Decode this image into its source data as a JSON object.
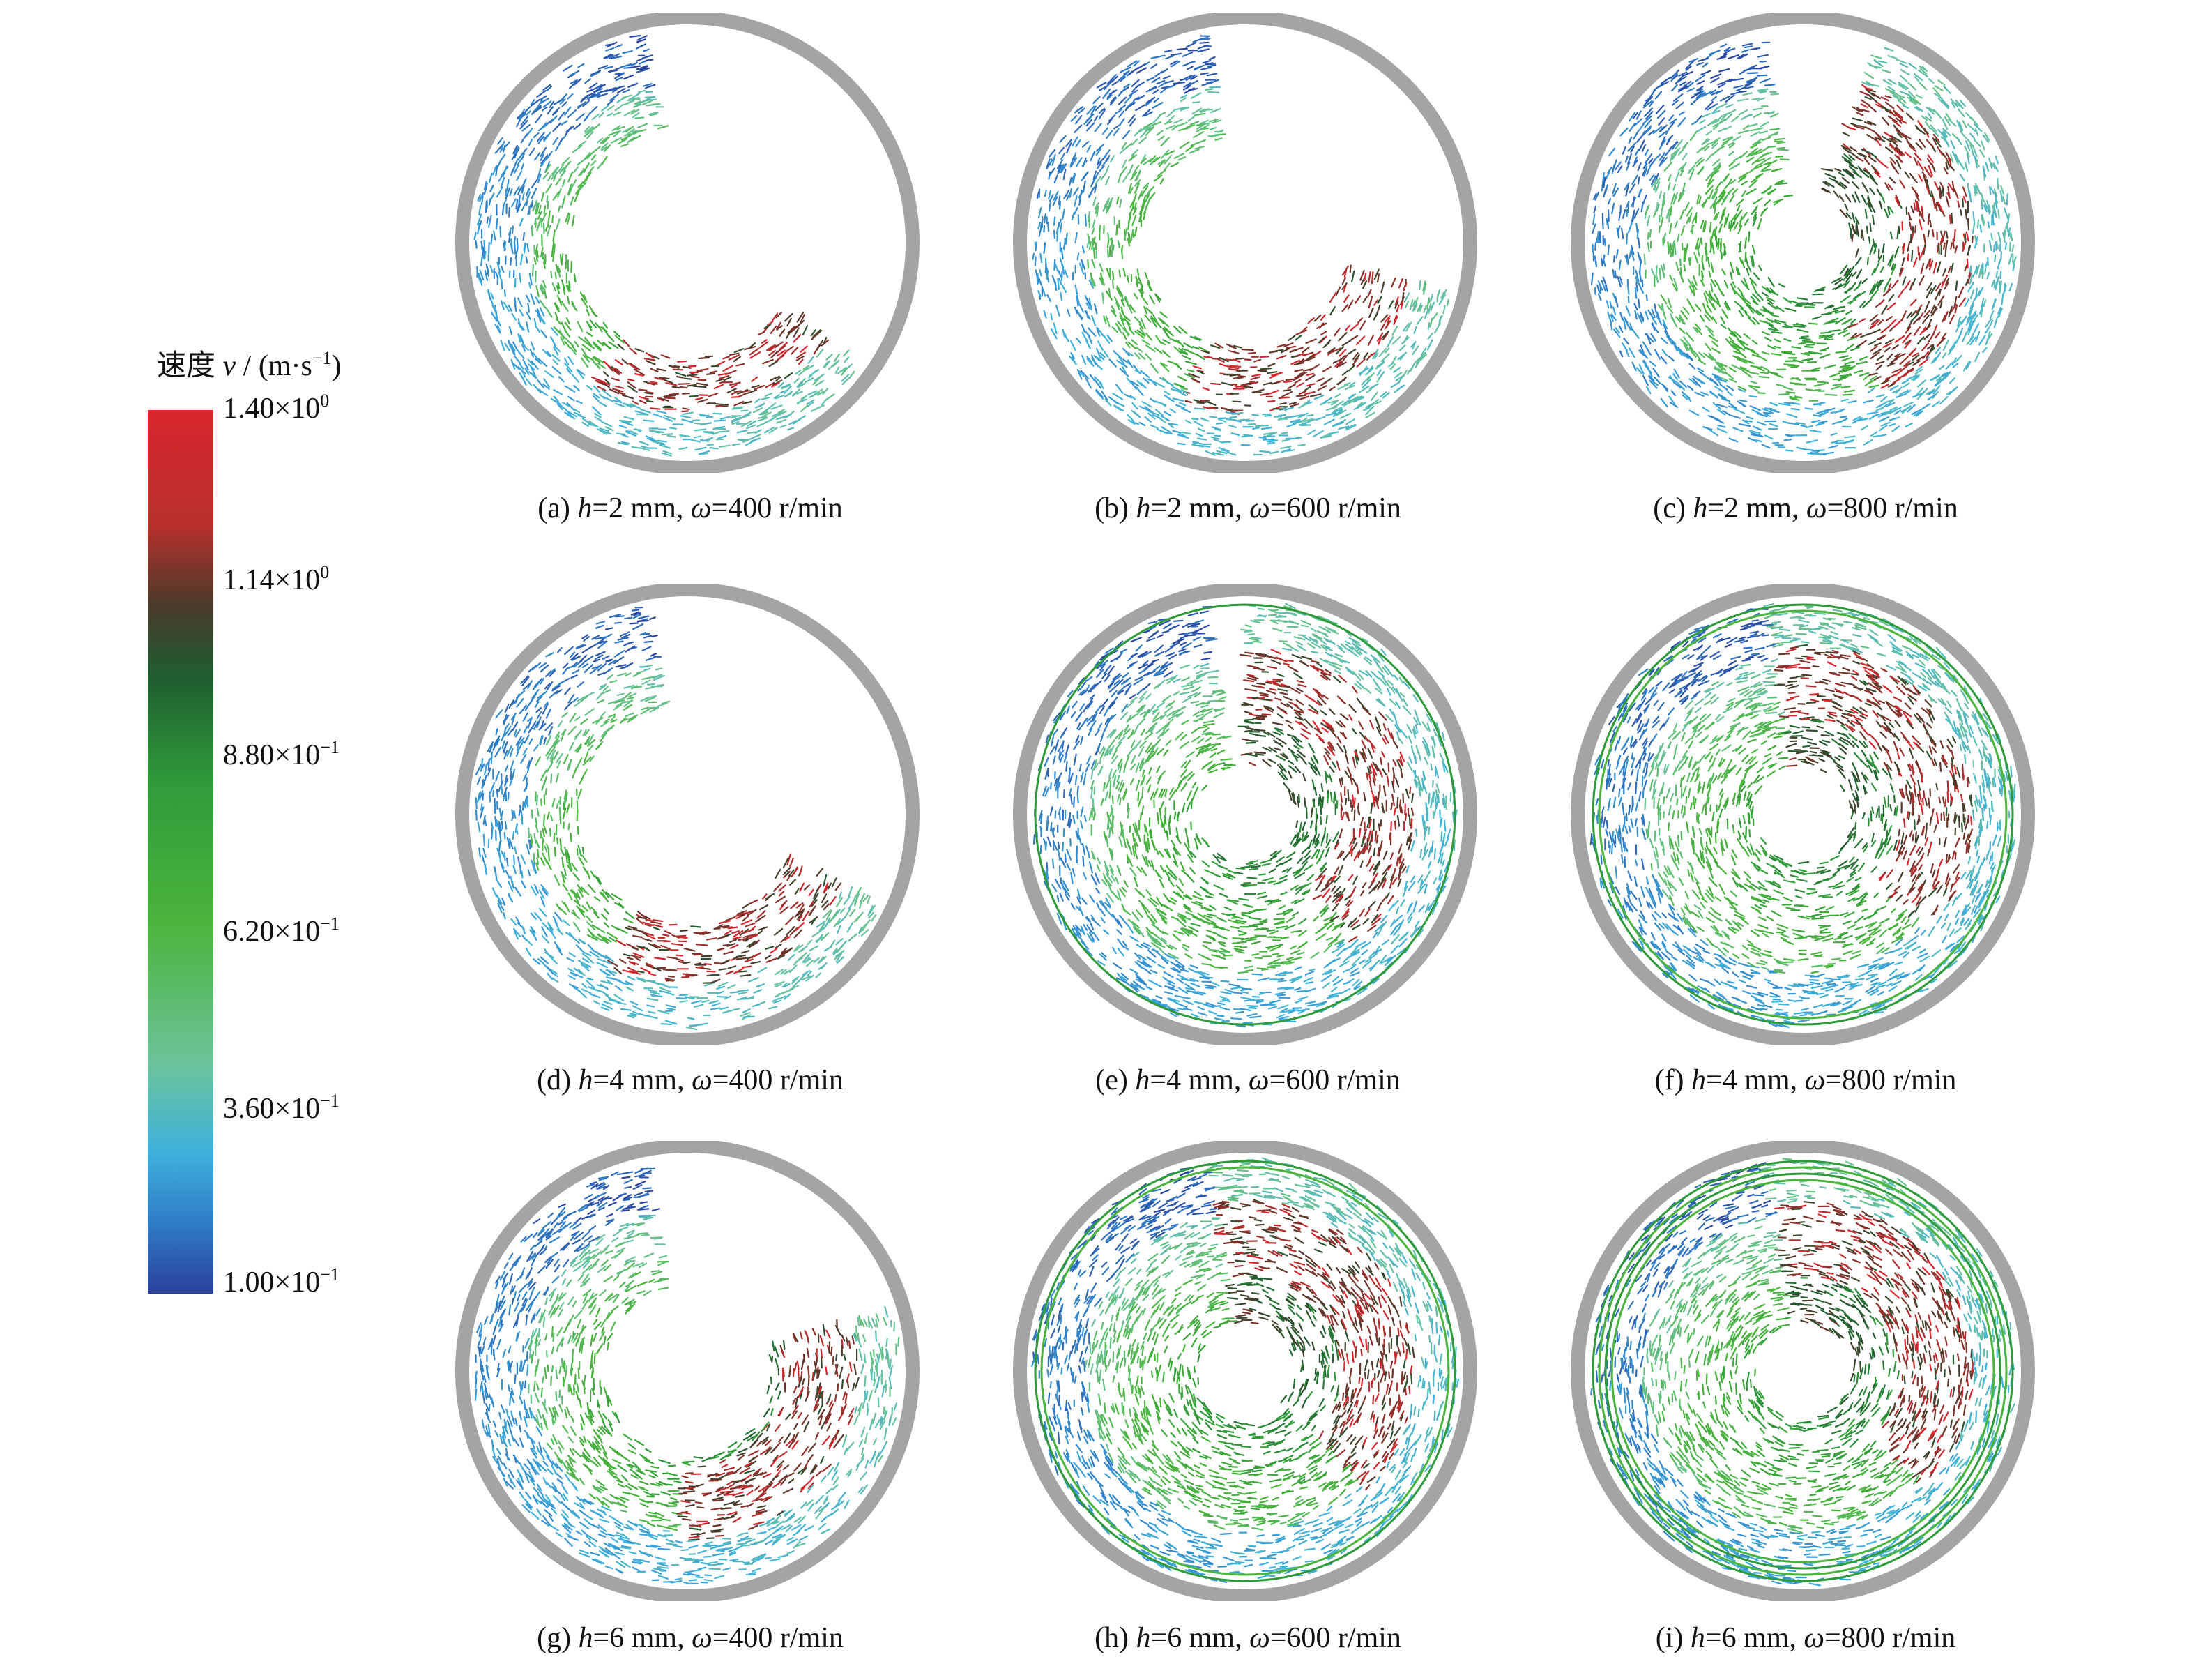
{
  "colorbar": {
    "title_prefix": "速度 ",
    "title_var": "v",
    "title_unit_base": " / (m·s",
    "title_unit_exp": "−1",
    "title_unit_close": ")",
    "labels": [
      {
        "mantissa": "1.40×10",
        "exp": "0",
        "value": 1.4
      },
      {
        "mantissa": "1.14×10",
        "exp": "0",
        "value": 1.14
      },
      {
        "mantissa": "8.80×10",
        "exp": "−1",
        "value": 0.88
      },
      {
        "mantissa": "6.20×10",
        "exp": "−1",
        "value": 0.62
      },
      {
        "mantissa": "3.60×10",
        "exp": "−1",
        "value": 0.36
      },
      {
        "mantissa": "1.00×10",
        "exp": "−1",
        "value": 0.1
      }
    ],
    "colors": [
      "#d9262d",
      "#4b3a2a",
      "#2e9a3a",
      "#6cc39a",
      "#3fb1dc",
      "#2a409c"
    ]
  },
  "panels": [
    {
      "letter": "(a) ",
      "h": "h",
      "h_val": "=2 mm, ",
      "w": "ω",
      "w_val": "=400 r/min",
      "fill": 0.35,
      "wall_rings": 0
    },
    {
      "letter": "(b) ",
      "h": "h",
      "h_val": "=2 mm, ",
      "w": "ω",
      "w_val": "=600 r/min",
      "fill": 0.45,
      "wall_rings": 0
    },
    {
      "letter": "(c) ",
      "h": "h",
      "h_val": "=2 mm, ",
      "w": "ω",
      "w_val": "=800 r/min",
      "fill": 0.85,
      "wall_rings": 0
    },
    {
      "letter": "(d) ",
      "h": "h",
      "h_val": "=4 mm, ",
      "w": "ω",
      "w_val": "=400 r/min",
      "fill": 0.4,
      "wall_rings": 0
    },
    {
      "letter": "(e) ",
      "h": "h",
      "h_val": "=4 mm, ",
      "w": "ω",
      "w_val": "=600 r/min",
      "fill": 0.95,
      "wall_rings": 1
    },
    {
      "letter": "(f) ",
      "h": "h",
      "h_val": "=4 mm, ",
      "w": "ω",
      "w_val": "=800 r/min",
      "fill": 1.0,
      "wall_rings": 2
    },
    {
      "letter": "(g) ",
      "h": "h",
      "h_val": "=6 mm, ",
      "w": "ω",
      "w_val": "=400 r/min",
      "fill": 0.6,
      "wall_rings": 0
    },
    {
      "letter": "(h) ",
      "h": "h",
      "h_val": "=6 mm, ",
      "w": "ω",
      "w_val": "=600 r/min",
      "fill": 1.0,
      "wall_rings": 2
    },
    {
      "letter": "(i) ",
      "h": "h",
      "h_val": "=6 mm, ",
      "w": "ω",
      "w_val": "=800 r/min",
      "fill": 1.0,
      "wall_rings": 4
    }
  ],
  "wall_color": "#a3a4a6"
}
